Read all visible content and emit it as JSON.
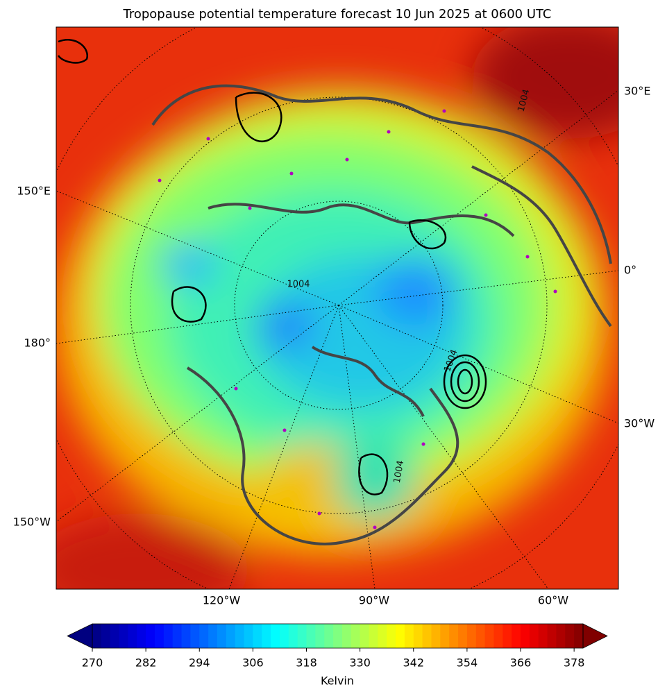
{
  "title": "Tropopause potential temperature forecast 10 Jun 2025 at 0600 UTC",
  "map": {
    "left_labels": [
      "150°E",
      "180°",
      "150°W"
    ],
    "right_labels": [
      "30°E",
      "0°",
      "30°W"
    ],
    "bottom_labels": [
      "120°W",
      "90°W",
      "60°W"
    ],
    "contour_labels": [
      "1004",
      "1004",
      "1004",
      "1004"
    ]
  },
  "colorbar": {
    "label": "Kelvin",
    "colormap": "jet",
    "range": [
      270,
      380
    ],
    "ticks": [
      270,
      282,
      294,
      306,
      318,
      330,
      342,
      354,
      366,
      378
    ]
  }
}
